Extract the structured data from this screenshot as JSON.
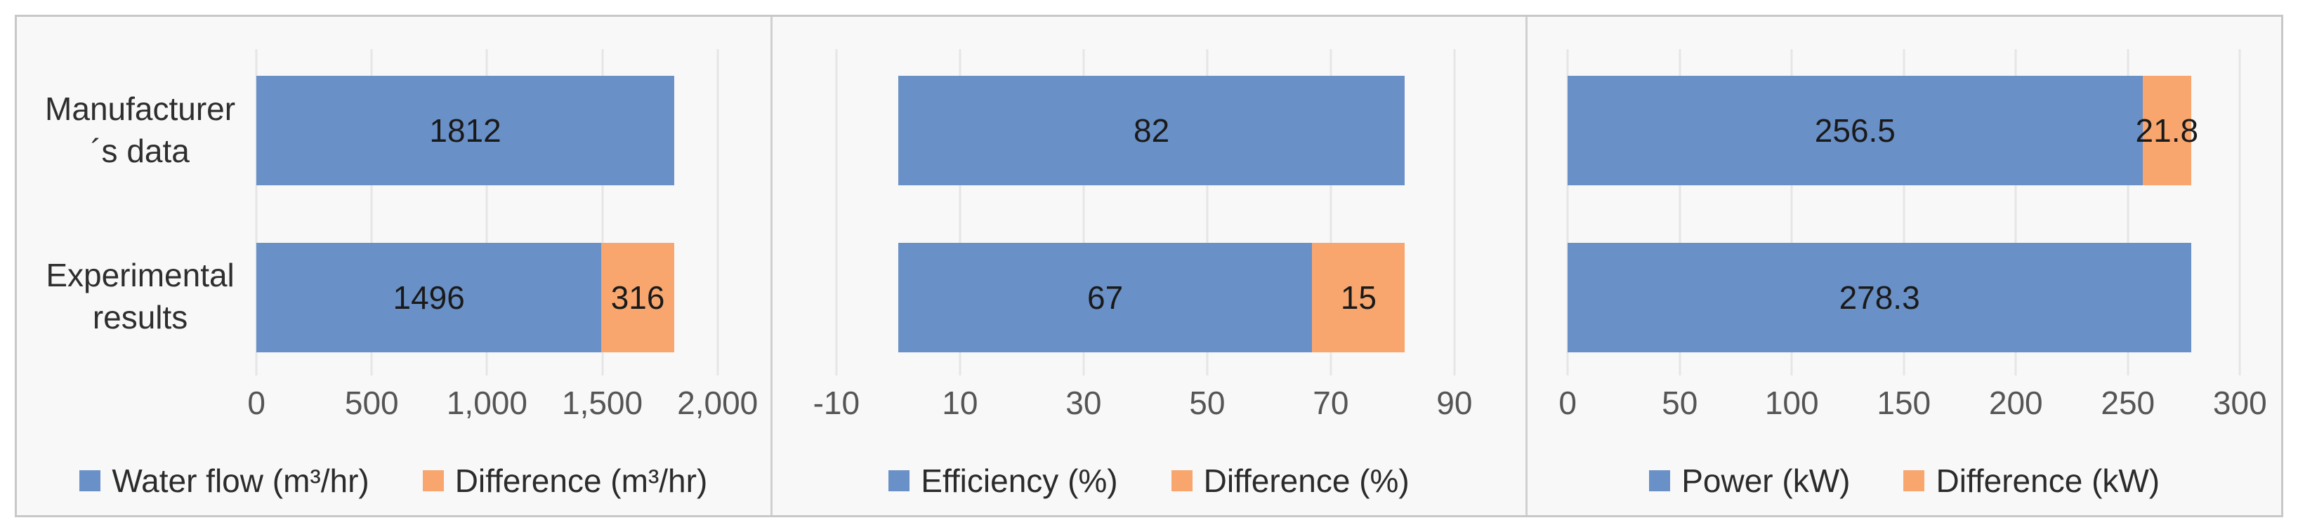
{
  "figure": {
    "background": "#ffffff",
    "panel_background": "#f8f8f8",
    "border_color": "#c8c8c8",
    "divider_color": "#d0d0d0",
    "gridline_color": "#e6e6e6",
    "tick_color": "#555555",
    "bar_label_color": "#1a1a1a"
  },
  "colors": {
    "blue": "#6990C7",
    "orange": "#F8A66E"
  },
  "chart_data": [
    {
      "type": "bar",
      "orientation": "horizontal",
      "stacked": true,
      "grid": "vertical",
      "legend_position": "bottom",
      "categories": [
        "Manufacturer´s data",
        "Experimental results"
      ],
      "show_category_labels": true,
      "xlim": [
        0,
        2150
      ],
      "ticks": [
        0,
        500,
        1000,
        1500,
        2000
      ],
      "tick_labels": [
        "0",
        "500",
        "1,000",
        "1,500",
        "2,000"
      ],
      "series": [
        {
          "name": "Water flow (m³/hr)",
          "color": "blue",
          "values": [
            1812,
            1496
          ]
        },
        {
          "name": "Difference (m³/hr)",
          "color": "orange",
          "values": [
            null,
            316
          ]
        }
      ],
      "bar_labels": [
        [
          "1812",
          ""
        ],
        [
          "1496",
          "316"
        ]
      ]
    },
    {
      "type": "bar",
      "orientation": "horizontal",
      "stacked": true,
      "grid": "vertical",
      "legend_position": "bottom",
      "categories": [
        "Manufacturer´s data",
        "Experimental results"
      ],
      "show_category_labels": false,
      "xlim": [
        -10,
        98
      ],
      "ticks": [
        -10,
        10,
        30,
        50,
        70,
        90
      ],
      "tick_labels": [
        "-10",
        "10",
        "30",
        "50",
        "70",
        "90"
      ],
      "series": [
        {
          "name": "Efficiency (%)",
          "color": "blue",
          "values": [
            82,
            67
          ]
        },
        {
          "name": "Difference (%)",
          "color": "orange",
          "values": [
            null,
            15
          ]
        }
      ],
      "bar_labels": [
        [
          "82",
          ""
        ],
        [
          "67",
          "15"
        ]
      ]
    },
    {
      "type": "bar",
      "orientation": "horizontal",
      "stacked": true,
      "grid": "vertical",
      "legend_position": "bottom",
      "categories": [
        "Manufacturer´s data",
        "Experimental results"
      ],
      "show_category_labels": false,
      "xlim": [
        0,
        310
      ],
      "ticks": [
        0,
        50,
        100,
        150,
        200,
        250,
        300
      ],
      "tick_labels": [
        "0",
        "50",
        "100",
        "150",
        "200",
        "250",
        "300"
      ],
      "series": [
        {
          "name": "Power (kW)",
          "color": "blue",
          "values": [
            256.5,
            278.3
          ]
        },
        {
          "name": "Difference (kW)",
          "color": "orange",
          "values": [
            21.8,
            null
          ]
        }
      ],
      "bar_labels": [
        [
          "256.5",
          "21.8"
        ],
        [
          "278.3",
          ""
        ]
      ]
    }
  ]
}
